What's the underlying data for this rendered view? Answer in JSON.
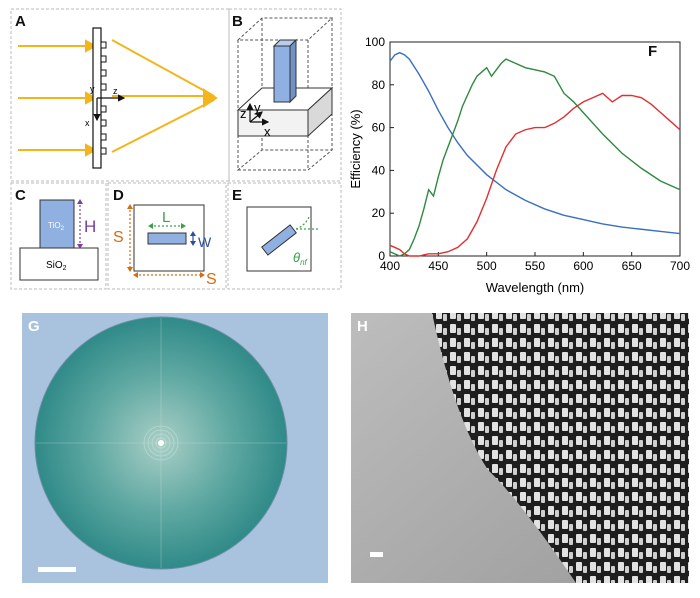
{
  "panels": {
    "A": {
      "letter": "A",
      "axis_y": "y",
      "axis_z": "z",
      "axis_x": "x"
    },
    "B": {
      "letter": "B",
      "axis_z": "z",
      "axis_y": "y",
      "axis_x": "x"
    },
    "C": {
      "letter": "C",
      "material_top": "TiO",
      "material_top_sub": "2",
      "material_bottom": "SiO",
      "material_bottom_sub": "2",
      "height_label": "H"
    },
    "D": {
      "letter": "D",
      "length_label": "L",
      "width_label": "W",
      "period_label_v": "S",
      "period_label_h": "S"
    },
    "E": {
      "letter": "E",
      "angle_symbol": "θ",
      "angle_sub": "nf"
    },
    "F": {
      "letter": "F"
    },
    "G": {
      "letter": "G"
    },
    "H": {
      "letter": "H"
    }
  },
  "colors": {
    "ray": "#f3b51b",
    "blue_series": "#3b6fc0",
    "green_series": "#2e8a3e",
    "red_series": "#e03030",
    "pillar": "#8fb0e0",
    "dim_green": "#3aa04a",
    "dim_purple": "#7a3fa0",
    "dim_orange": "#d86a10",
    "dim_blue": "#2a4fa0",
    "optical_bg": "#a9c3de",
    "lens_fill": "#3d9c9a"
  },
  "chart_data": {
    "type": "line",
    "xlabel": "Wavelength (nm)",
    "ylabel": "Efficiency (%)",
    "xlim": [
      400,
      700
    ],
    "ylim": [
      0,
      100
    ],
    "xticks": [
      400,
      450,
      500,
      550,
      600,
      650,
      700
    ],
    "yticks": [
      0,
      20,
      40,
      60,
      80,
      100
    ],
    "grid": false,
    "series": [
      {
        "color": "#3b6fc0",
        "x": [
          400,
          405,
          410,
          415,
          420,
          430,
          440,
          450,
          460,
          470,
          480,
          500,
          520,
          540,
          560,
          580,
          600,
          620,
          640,
          660,
          680,
          700
        ],
        "y": [
          91,
          94,
          95,
          94,
          92,
          85,
          77,
          68,
          60,
          53,
          47,
          38,
          31,
          26,
          22,
          19,
          17,
          15,
          13.5,
          12.5,
          11.5,
          10.5
        ]
      },
      {
        "color": "#2e8a3e",
        "x": [
          400,
          405,
          410,
          415,
          420,
          425,
          430,
          435,
          440,
          445,
          450,
          455,
          460,
          465,
          470,
          475,
          480,
          485,
          490,
          495,
          500,
          505,
          510,
          515,
          520,
          530,
          540,
          550,
          560,
          570,
          575,
          580,
          590,
          600,
          620,
          640,
          660,
          680,
          700
        ],
        "y": [
          2,
          1,
          0,
          1,
          3,
          8,
          14,
          22,
          31,
          28,
          37,
          45,
          51,
          57,
          63,
          70,
          75,
          80,
          84,
          86,
          88,
          84,
          87,
          90,
          92,
          90,
          88,
          87,
          86,
          84,
          80,
          76,
          72,
          67,
          57,
          48,
          41,
          35,
          31
        ]
      },
      {
        "color": "#e03030",
        "x": [
          400,
          405,
          410,
          415,
          420,
          430,
          440,
          450,
          460,
          470,
          480,
          490,
          500,
          510,
          520,
          530,
          540,
          550,
          560,
          570,
          580,
          590,
          600,
          610,
          620,
          625,
          630,
          640,
          650,
          660,
          670,
          680,
          690,
          700
        ],
        "y": [
          5,
          4,
          3,
          1,
          0,
          0,
          1,
          1,
          2,
          4,
          8,
          16,
          27,
          40,
          51,
          57,
          59,
          60,
          60,
          62,
          65,
          69,
          72,
          74,
          76,
          74,
          72,
          75,
          75,
          74,
          71,
          67,
          63,
          59
        ]
      }
    ]
  }
}
